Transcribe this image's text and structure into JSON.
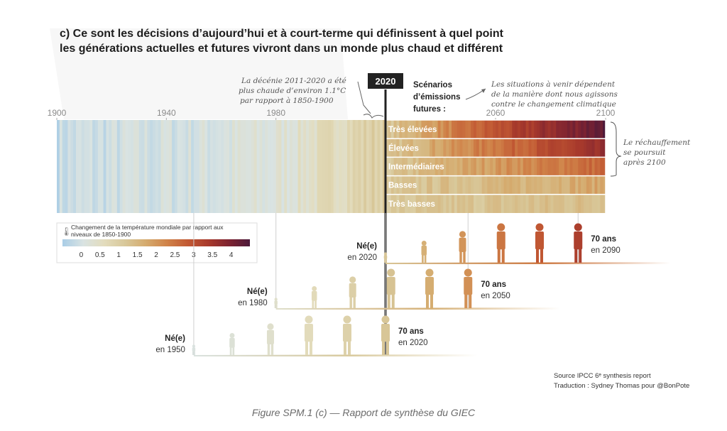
{
  "title": {
    "line1": "c) Ce sont les décisions d’aujourd’hui et à court-terme qui définissent à quel point",
    "line2": "les générations actuelles et futures vivront dans un monde plus chaud et différent"
  },
  "annotations": {
    "decade_line1": "La décénie 2011-2020 a été",
    "decade_line2": "plus chaude d’environ 1.1°C",
    "decade_line3": "par rapport à 1850-1900",
    "marker_year": "2020",
    "scenarios_line1": "Scénarios",
    "scenarios_line2": "d’émissions",
    "scenarios_line3": "futures :",
    "future_line1": "Les situations à venir dépendent",
    "future_line2": "de la manière dont nous agissons",
    "future_line3": "contre le changement climatique",
    "warming_line1": "Le réchauffement",
    "warming_line2": "se poursuit",
    "warming_line3": "après 2100"
  },
  "colors": {
    "cold": "#a9cde6",
    "neutral": "#ece7d2",
    "scale": [
      "#a9cde6",
      "#d9e3e2",
      "#e3dcbd",
      "#d8c89a",
      "#d5ab6e",
      "#d08349",
      "#c25a34",
      "#a83a2c",
      "#7e2331",
      "#4c1a3a"
    ],
    "frame": "#222222",
    "caption": "#6b6b6b"
  },
  "chart_data": {
    "type": "heatmap",
    "x_axis": {
      "ticks": [
        "1900",
        "1940",
        "1980",
        "2060",
        "2100"
      ],
      "range": [
        1900,
        2100
      ]
    },
    "observed": {
      "period": [
        1900,
        2020
      ],
      "pattern": "year-by-year stripes, bluish-white before ~1950 warming to orange-red by 2020"
    },
    "scenarios": [
      {
        "name": "Très élevées",
        "warming_2100": 4.4
      },
      {
        "name": "Élevées",
        "warming_2100": 3.6
      },
      {
        "name": "Intermédiaires",
        "warming_2100": 2.7
      },
      {
        "name": "Basses",
        "warming_2100": 1.8
      },
      {
        "name": "Très basses",
        "warming_2100": 1.4
      }
    ],
    "colorbar": {
      "label_line1": "Changement de la température mondiale par rapport aux",
      "label_line2": "niveaux de 1850-1900",
      "ticks": [
        "0",
        "0.5",
        "1",
        "1.5",
        "2",
        "2.5",
        "3",
        "3.5",
        "4"
      ],
      "range": [
        -0.5,
        4.5
      ]
    },
    "generations": [
      {
        "born_line1": "Né(e)",
        "born_line2": "en 1950",
        "age_line1": "70 ans",
        "age_line2": "en 2020",
        "birth_year": 1950,
        "age_year": 2020
      },
      {
        "born_line1": "Né(e)",
        "born_line2": "en 1980",
        "age_line1": "70 ans",
        "age_line2": "en 2050",
        "birth_year": 1980,
        "age_year": 2050
      },
      {
        "born_line1": "Né(e)",
        "born_line2": "en 2020",
        "age_line1": "70 ans",
        "age_line2": "en 2090",
        "birth_year": 2020,
        "age_year": 2090
      }
    ]
  },
  "source": {
    "line1": "Source IPCC 6ᵉ synthesis report",
    "line2": "Traduction : Sydney Thomas pour @BonPote"
  },
  "caption": "Figure SPM.1 (c) — Rapport de synthèse du GIEC"
}
